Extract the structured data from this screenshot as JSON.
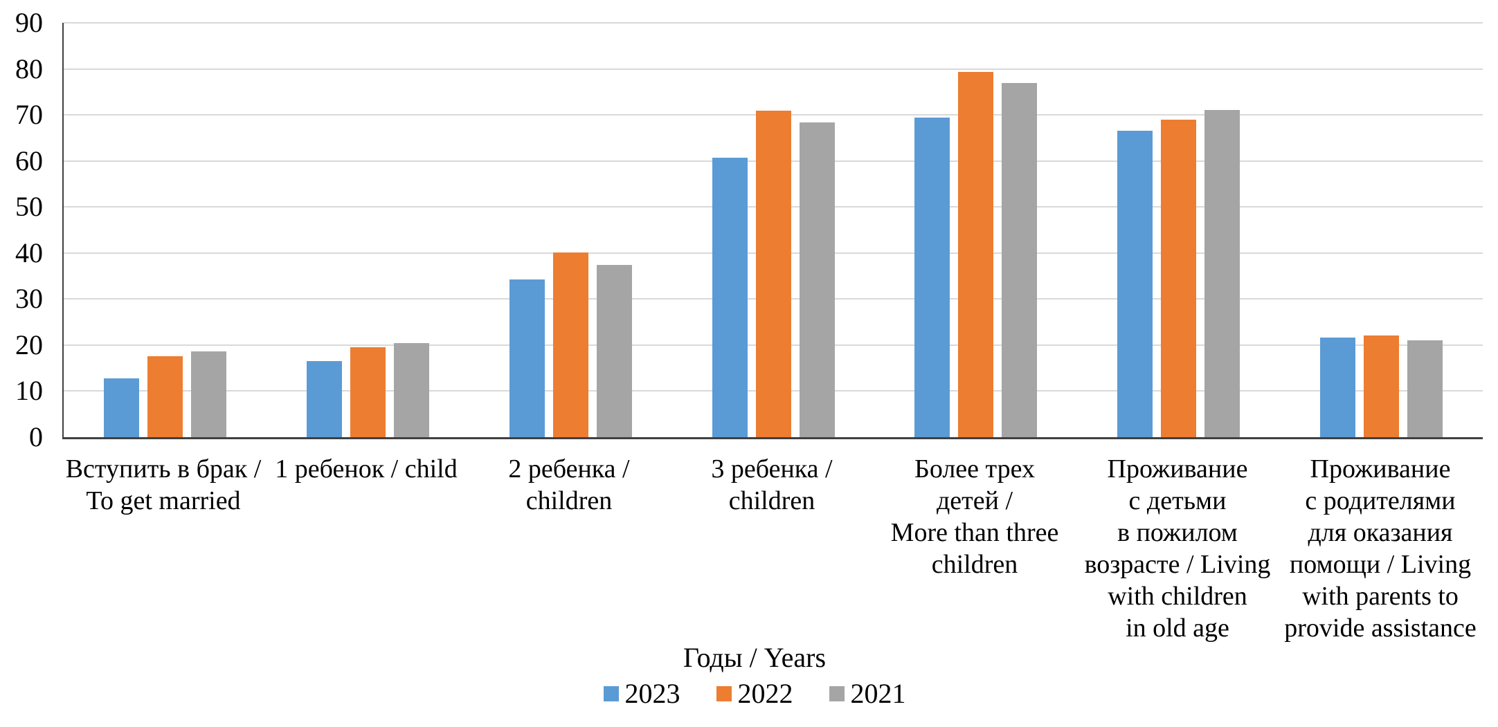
{
  "chart_data": {
    "type": "bar",
    "title": "",
    "legend_title": "Годы / Years",
    "legend_position": "bottom",
    "grid": true,
    "ylim": [
      0,
      90
    ],
    "yticks": [
      0,
      10,
      20,
      30,
      40,
      50,
      60,
      70,
      80,
      90
    ],
    "xlabel": "",
    "ylabel": "",
    "categories": [
      [
        "Вступить в брак /",
        "To get married"
      ],
      [
        "1 ребенок / child"
      ],
      [
        "2 ребенка /",
        "children"
      ],
      [
        "3 ребенка /",
        "children"
      ],
      [
        "Более трех",
        "детей /",
        "More than three",
        "children"
      ],
      [
        "Проживание",
        "с детьми",
        "в пожилом",
        "возрасте / Living",
        "with children",
        "in old age"
      ],
      [
        "Проживание",
        "с родителями",
        "для оказания",
        "помощи / Living",
        "with parents to",
        "provide assistance"
      ]
    ],
    "series": [
      {
        "name": "2023",
        "color": "#5B9BD5",
        "values": [
          12.7,
          16.6,
          34.2,
          60.7,
          69.4,
          66.5,
          21.7
        ]
      },
      {
        "name": "2022",
        "color": "#ED7D31",
        "values": [
          17.6,
          19.6,
          40.1,
          70.9,
          79.3,
          68.9,
          22.1
        ]
      },
      {
        "name": "2021",
        "color": "#A5A5A5",
        "values": [
          18.7,
          20.4,
          37.4,
          68.4,
          77.0,
          71.1,
          21.0
        ]
      }
    ],
    "colors": {
      "gridline": "#D9D9D9",
      "axis": "#404040",
      "text": "#000000",
      "background": "#FFFFFF"
    }
  }
}
